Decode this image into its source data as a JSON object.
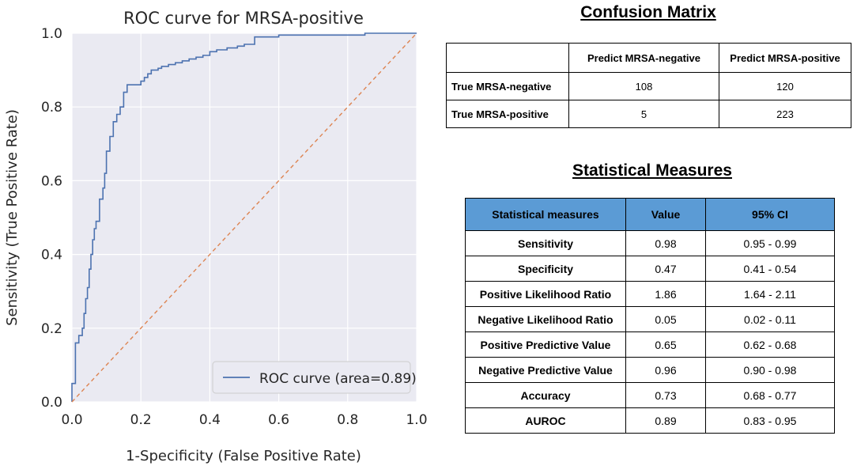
{
  "chart_data": {
    "type": "line",
    "title": "ROC curve for MRSA-positive",
    "xlabel": "1-Specificity (False Positive Rate)",
    "ylabel": "Sensitivity (True Positive Rate)",
    "xlim": [
      0.0,
      1.0
    ],
    "ylim": [
      0.0,
      1.0
    ],
    "xticks": [
      0.0,
      0.2,
      0.4,
      0.6,
      0.8,
      1.0
    ],
    "yticks": [
      0.0,
      0.2,
      0.4,
      0.6,
      0.8,
      1.0
    ],
    "xtick_labels": [
      "0.0",
      "0.2",
      "0.4",
      "0.6",
      "0.8",
      "1.0"
    ],
    "ytick_labels": [
      "0.0",
      "0.2",
      "0.4",
      "0.6",
      "0.8",
      "1.0"
    ],
    "grid": true,
    "legend_position": "bottom-right",
    "series": [
      {
        "name": "ROC curve (area=0.89)",
        "color": "#4c72b0",
        "style": "step",
        "x": [
          0.0,
          0.0,
          0.01,
          0.01,
          0.02,
          0.02,
          0.03,
          0.03,
          0.035,
          0.035,
          0.04,
          0.04,
          0.045,
          0.045,
          0.05,
          0.05,
          0.055,
          0.055,
          0.06,
          0.06,
          0.065,
          0.065,
          0.07,
          0.07,
          0.08,
          0.08,
          0.09,
          0.09,
          0.095,
          0.095,
          0.1,
          0.1,
          0.11,
          0.11,
          0.12,
          0.12,
          0.13,
          0.13,
          0.14,
          0.14,
          0.15,
          0.15,
          0.16,
          0.16,
          0.18,
          0.18,
          0.2,
          0.2,
          0.21,
          0.21,
          0.22,
          0.22,
          0.23,
          0.23,
          0.24,
          0.24,
          0.25,
          0.25,
          0.26,
          0.26,
          0.28,
          0.28,
          0.3,
          0.3,
          0.32,
          0.32,
          0.34,
          0.34,
          0.36,
          0.36,
          0.38,
          0.38,
          0.4,
          0.4,
          0.42,
          0.42,
          0.45,
          0.45,
          0.48,
          0.48,
          0.5,
          0.5,
          0.53,
          0.53,
          0.54,
          0.54,
          0.6,
          0.6,
          0.85,
          0.85,
          1.0
        ],
        "y": [
          0.0,
          0.05,
          0.05,
          0.16,
          0.16,
          0.18,
          0.18,
          0.2,
          0.2,
          0.24,
          0.24,
          0.28,
          0.28,
          0.31,
          0.31,
          0.36,
          0.36,
          0.4,
          0.4,
          0.44,
          0.44,
          0.47,
          0.47,
          0.49,
          0.49,
          0.55,
          0.55,
          0.58,
          0.58,
          0.62,
          0.62,
          0.68,
          0.68,
          0.72,
          0.72,
          0.76,
          0.76,
          0.78,
          0.78,
          0.8,
          0.8,
          0.84,
          0.84,
          0.86,
          0.86,
          0.86,
          0.86,
          0.87,
          0.87,
          0.88,
          0.88,
          0.89,
          0.89,
          0.9,
          0.9,
          0.9,
          0.9,
          0.905,
          0.905,
          0.91,
          0.91,
          0.915,
          0.915,
          0.92,
          0.92,
          0.925,
          0.925,
          0.93,
          0.93,
          0.935,
          0.935,
          0.94,
          0.94,
          0.95,
          0.95,
          0.955,
          0.955,
          0.96,
          0.96,
          0.965,
          0.965,
          0.97,
          0.97,
          0.99,
          0.99,
          0.99,
          0.99,
          0.995,
          0.995,
          1.0,
          1.0
        ]
      },
      {
        "name": "chance",
        "color": "#dd8452",
        "style": "dashed",
        "x": [
          0.0,
          1.0
        ],
        "y": [
          0.0,
          1.0
        ]
      }
    ],
    "legend": [
      "ROC curve (area=0.89)"
    ]
  },
  "confusion": {
    "heading": "Confusion Matrix",
    "col_headers": [
      "",
      "Predict MRSA-negative",
      "Predict MRSA-positive"
    ],
    "rows": [
      {
        "label": "True MRSA-negative",
        "values": [
          "108",
          "120"
        ]
      },
      {
        "label": "True MRSA-positive",
        "values": [
          "5",
          "223"
        ]
      }
    ]
  },
  "stats": {
    "heading": "Statistical Measures",
    "header_color": "#5b9bd5",
    "columns": [
      "Statistical measures",
      "Value",
      "95% CI"
    ],
    "rows": [
      {
        "measure": "Sensitivity",
        "value": "0.98",
        "ci": "0.95 - 0.99"
      },
      {
        "measure": "Specificity",
        "value": "0.47",
        "ci": "0.41 - 0.54"
      },
      {
        "measure": "Positive Likelihood Ratio",
        "value": "1.86",
        "ci": "1.64 - 2.11"
      },
      {
        "measure": "Negative Likelihood Ratio",
        "value": "0.05",
        "ci": "0.02 - 0.11"
      },
      {
        "measure": "Positive Predictive Value",
        "value": "0.65",
        "ci": "0.62 - 0.68"
      },
      {
        "measure": "Negative Predictive Value",
        "value": "0.96",
        "ci": "0.90 - 0.98"
      },
      {
        "measure": "Accuracy",
        "value": "0.73",
        "ci": "0.68 - 0.77"
      },
      {
        "measure": "AUROC",
        "value": "0.89",
        "ci": "0.83 - 0.95"
      }
    ]
  }
}
